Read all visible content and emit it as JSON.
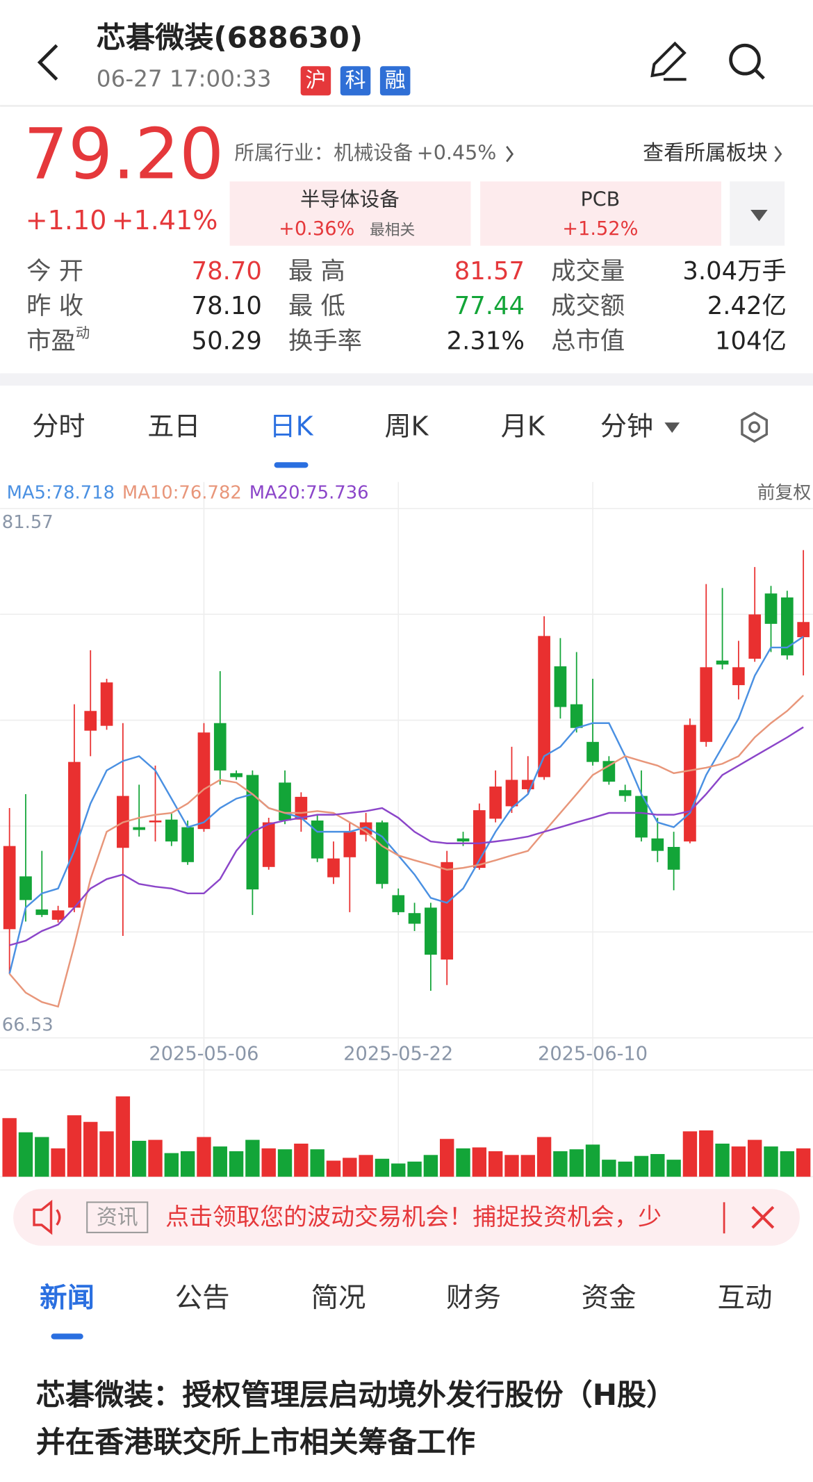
{
  "header": {
    "title": "芯碁微装(688630)",
    "time": "06-27 17:00:33",
    "badges": [
      {
        "text": "沪",
        "color": "#e5383b"
      },
      {
        "text": "科",
        "color": "#2f6fd6"
      },
      {
        "text": "融",
        "color": "#2f6fd6"
      }
    ]
  },
  "quote": {
    "price": "79.20",
    "change": "+1.10",
    "change_pct": "+1.41%",
    "industry_label": "所属行业：",
    "industry": "机械设备",
    "industry_change": "+0.45%",
    "view_sectors": "查看所属板块",
    "sectors": [
      {
        "name": "半导体设备",
        "change": "+0.36%",
        "tag": "最相关"
      },
      {
        "name": "PCB",
        "change": "+1.52%"
      }
    ]
  },
  "stats": [
    [
      {
        "label": "今 开",
        "value": "78.70",
        "color": "#e5383b"
      },
      {
        "label": "最 高",
        "value": "81.57",
        "color": "#e5383b"
      },
      {
        "label": "成交量",
        "value": "3.04万手",
        "color": "#222"
      }
    ],
    [
      {
        "label": "昨 收",
        "value": "78.10",
        "color": "#222"
      },
      {
        "label": "最 低",
        "value": "77.44",
        "color": "#13a538"
      },
      {
        "label": "成交额",
        "value": "2.42亿",
        "color": "#222"
      }
    ],
    [
      {
        "label": "市盈",
        "sup": "动",
        "value": "50.29",
        "color": "#222"
      },
      {
        "label": "换手率",
        "value": "2.31%",
        "color": "#222"
      },
      {
        "label": "总市值",
        "value": "104亿",
        "color": "#222"
      }
    ]
  ],
  "chart_tabs": {
    "items": [
      "分时",
      "五日",
      "日K",
      "周K",
      "月K",
      "分钟"
    ],
    "active": 2
  },
  "chart_data": {
    "type": "candlestick",
    "adjust": "前复权",
    "up_color": "#e93030",
    "down_color": "#13a538",
    "ylim": [
      66.53,
      81.57
    ],
    "yticks": [
      81.57,
      66.53
    ],
    "categories": [
      null,
      null,
      null,
      null,
      null,
      null,
      null,
      null,
      null,
      null,
      null,
      null,
      "2025-05-06",
      null,
      null,
      null,
      null,
      null,
      null,
      null,
      null,
      null,
      null,
      null,
      "2025-05-22",
      null,
      null,
      null,
      null,
      null,
      null,
      null,
      null,
      null,
      null,
      null,
      "2025-06-10",
      null,
      null,
      null,
      null,
      null,
      null,
      null,
      null,
      null,
      null,
      null,
      null,
      null
    ],
    "open": [
      69.08,
      70.82,
      69.73,
      69.39,
      69.79,
      75.62,
      75.78,
      71.76,
      72.44,
      72.6,
      72.69,
      72.44,
      72.38,
      75.87,
      74.22,
      74.16,
      71.13,
      73.91,
      72.69,
      72.66,
      70.79,
      71.45,
      72.19,
      72.6,
      70.2,
      69.61,
      69.79,
      68.08,
      72.07,
      71.1,
      72.72,
      73.13,
      73.69,
      74.09,
      77.74,
      76.49,
      75.25,
      74.62,
      73.66,
      73.47,
      72.07,
      71.79,
      71.97,
      75.25,
      77.93,
      77.12,
      77.99,
      80.14,
      80.01,
      78.7
    ],
    "high": [
      73.07,
      73.53,
      71.66,
      69.85,
      76.49,
      78.27,
      77.33,
      75.87,
      73.84,
      74.47,
      72.91,
      72.66,
      75.87,
      77.58,
      74.31,
      74.31,
      72.75,
      74.31,
      73.59,
      72.85,
      71.97,
      72.6,
      72.91,
      72.66,
      70.42,
      69.95,
      69.95,
      71.66,
      72.29,
      73.22,
      74.31,
      75.09,
      74.78,
      79.39,
      78.67,
      78.21,
      77.33,
      74.78,
      73.84,
      74.31,
      72.75,
      72.29,
      76.02,
      80.45,
      80.32,
      78.58,
      81.01,
      80.39,
      80.23,
      81.57
    ],
    "low": [
      67.61,
      69.33,
      69.48,
      69.3,
      69.64,
      74.78,
      75.65,
      68.86,
      72.13,
      71.97,
      71.82,
      71.2,
      72.29,
      73.84,
      74.0,
      69.55,
      71.04,
      72.54,
      72.29,
      71.29,
      70.57,
      69.64,
      71.97,
      70.42,
      69.55,
      69.02,
      67.05,
      67.24,
      71.82,
      71.04,
      72.6,
      72.91,
      73.53,
      74.0,
      76.02,
      75.56,
      74.47,
      73.84,
      73.28,
      71.97,
      71.29,
      70.36,
      71.91,
      75.09,
      77.64,
      76.65,
      77.89,
      78.21,
      77.96,
      77.44
    ],
    "close": [
      71.82,
      70.04,
      69.55,
      69.7,
      74.59,
      76.27,
      77.21,
      73.47,
      72.35,
      72.66,
      71.97,
      71.29,
      75.56,
      74.31,
      74.09,
      70.39,
      72.6,
      72.66,
      73.44,
      71.41,
      71.41,
      72.29,
      72.6,
      70.57,
      69.64,
      69.26,
      68.24,
      71.29,
      71.97,
      73.0,
      73.78,
      74.0,
      74.0,
      78.74,
      76.4,
      75.71,
      74.59,
      73.94,
      73.47,
      72.1,
      71.66,
      71.04,
      75.81,
      77.71,
      77.8,
      77.71,
      79.45,
      79.14,
      78.1,
      79.2
    ],
    "volume": {
      "ylim": [
        0,
        10
      ],
      "values": [
        6.2,
        4.7,
        4.2,
        3.0,
        6.5,
        5.8,
        4.8,
        8.5,
        3.8,
        3.9,
        2.5,
        2.7,
        4.2,
        3.2,
        2.7,
        3.9,
        3.0,
        2.9,
        3.5,
        2.9,
        1.7,
        2.0,
        2.3,
        1.9,
        1.4,
        1.6,
        2.3,
        4.0,
        3.0,
        3.1,
        2.7,
        2.3,
        2.3,
        4.2,
        2.7,
        2.9,
        3.4,
        1.8,
        1.6,
        2.2,
        2.4,
        1.8,
        4.8,
        4.9,
        3.5,
        3.2,
        3.9,
        3.2,
        2.7,
        3.0
      ]
    },
    "ma": [
      {
        "name": "MA5:78.718",
        "color": "#4a90e2",
        "values": [
          67.61,
          69.79,
          70.26,
          70.42,
          71.66,
          73.22,
          74.31,
          74.62,
          74.78,
          74.31,
          73.38,
          72.44,
          72.6,
          73.07,
          73.38,
          73.53,
          73.07,
          72.91,
          72.75,
          72.29,
          72.29,
          72.29,
          72.44,
          72.13,
          71.51,
          70.88,
          70.11,
          69.95,
          70.42,
          71.35,
          72.29,
          73.07,
          73.53,
          74.78,
          75.09,
          75.71,
          75.87,
          75.87,
          74.78,
          73.53,
          72.6,
          72.44,
          72.91,
          74.16,
          75.09,
          76.02,
          77.43,
          78.36,
          78.36,
          78.718
        ]
      },
      {
        "name": "MA10:76.782",
        "color": "#e8967a",
        "values": [
          67.61,
          66.99,
          66.68,
          66.53,
          68.55,
          70.73,
          72.29,
          72.6,
          72.75,
          72.85,
          72.91,
          73.22,
          73.69,
          74.0,
          73.91,
          73.53,
          73.07,
          72.91,
          72.91,
          72.97,
          72.91,
          72.6,
          72.29,
          71.82,
          71.51,
          71.35,
          71.2,
          71.04,
          71.1,
          71.2,
          71.35,
          71.51,
          71.66,
          72.29,
          72.91,
          73.53,
          74.16,
          74.47,
          74.78,
          74.62,
          74.47,
          74.22,
          74.31,
          74.4,
          74.53,
          74.78,
          75.4,
          75.87,
          76.27,
          76.782
        ]
      },
      {
        "name": "MA20:75.736",
        "color": "#8b45c9",
        "values": [
          68.55,
          68.7,
          69.02,
          69.23,
          69.79,
          70.42,
          70.73,
          70.88,
          70.57,
          70.48,
          70.42,
          70.26,
          70.26,
          70.73,
          71.66,
          72.29,
          72.54,
          72.66,
          72.75,
          72.85,
          72.85,
          72.91,
          72.97,
          73.07,
          72.75,
          72.29,
          71.97,
          71.91,
          71.91,
          71.91,
          71.97,
          72.04,
          72.13,
          72.29,
          72.44,
          72.6,
          72.75,
          72.91,
          72.91,
          72.91,
          72.85,
          72.85,
          72.97,
          73.53,
          74.16,
          74.47,
          74.78,
          75.09,
          75.4,
          75.736
        ]
      }
    ]
  },
  "banner": {
    "tag": "资讯",
    "text": "点击领取您的波动交易机会！捕捉投资机会，少"
  },
  "news_tabs": {
    "items": [
      "新闻",
      "公告",
      "简况",
      "财务",
      "资金",
      "互动"
    ],
    "active": 0
  },
  "headline": {
    "lines": [
      "芯碁微装：授权管理层启动境外发行股份（H股）",
      "并在香港联交所上市相关筹备工作"
    ]
  }
}
